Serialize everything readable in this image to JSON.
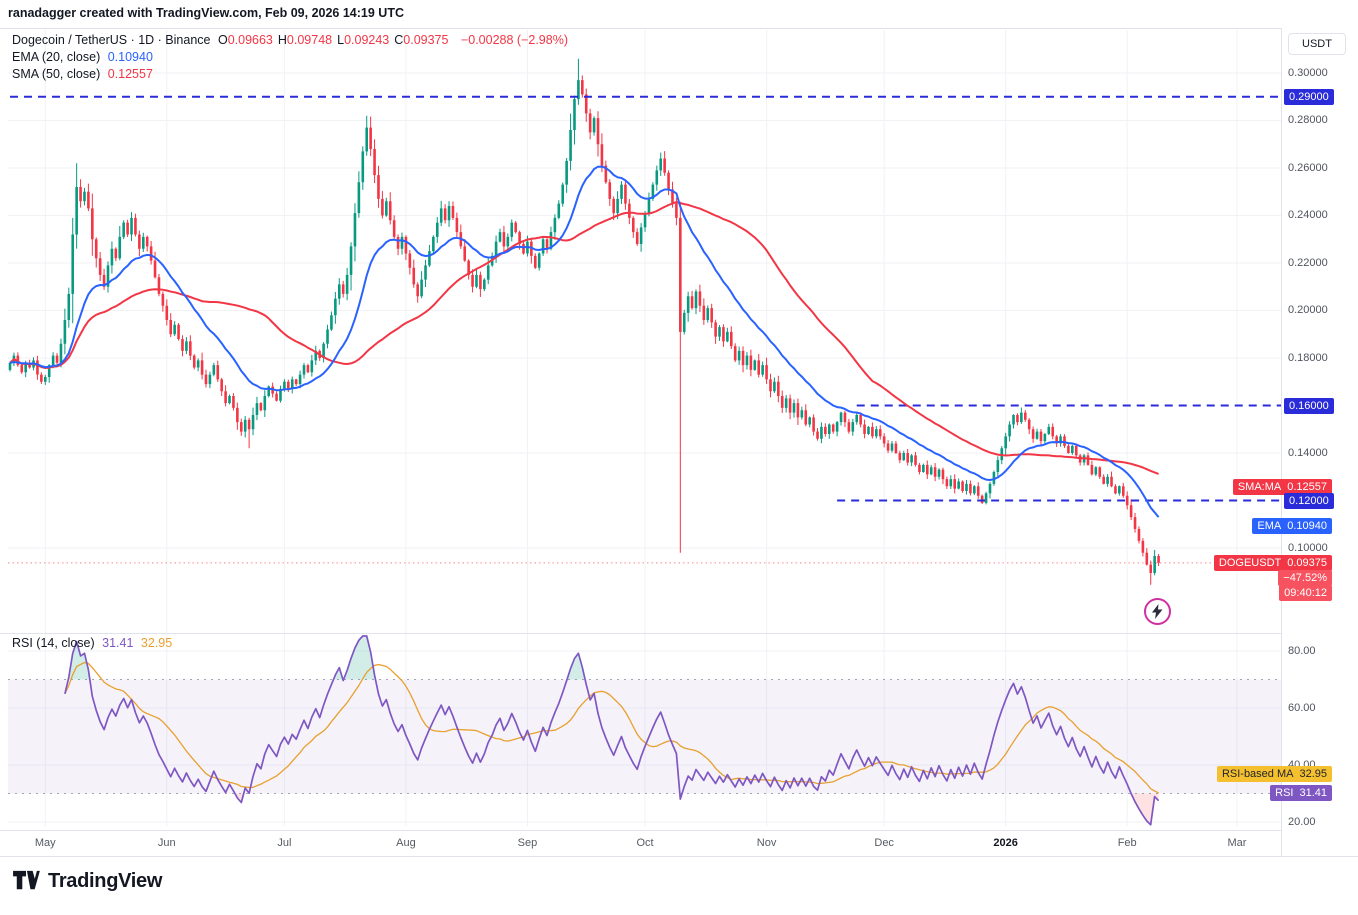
{
  "header": {
    "attribution": "ranadagger created with TradingView.com, Feb 09, 2026 14:19 UTC"
  },
  "legend": {
    "title": "Dogecoin / TetherUS · 1D · Binance",
    "ohlc": [
      {
        "k": "O",
        "v": "0.09663"
      },
      {
        "k": "H",
        "v": "0.09748"
      },
      {
        "k": "L",
        "v": "0.09243"
      },
      {
        "k": "C",
        "v": "0.09375"
      }
    ],
    "change": "−0.00288 (−2.98%)",
    "ema_label": "EMA (20, close)",
    "ema_value": "0.10940",
    "sma_label": "SMA (50, close)",
    "sma_value": "0.12557",
    "rsi_label": "RSI (14, close)",
    "rsi_value": "31.41",
    "rsi_ma_value": "32.95"
  },
  "labels": {
    "axis_unit": "USDT",
    "sma_tag": "SMA:MA",
    "sma_value": "0.12557",
    "ema_tag": "EMA",
    "ema_value": "0.10940",
    "symbol_tag": "DOGEUSDT",
    "last_price": "0.09375",
    "change_pct": "−47.52%",
    "countdown": "09:40:12",
    "rsi_ma_tag": "RSI-based MA",
    "rsi_ma_value": "32.95",
    "rsi_tag": "RSI",
    "rsi_value": "31.41"
  },
  "branding": {
    "logo_text": "TradingView"
  },
  "colors": {
    "up": "#089981",
    "down": "#F23645",
    "ema": "#2962FF",
    "sma": "#F23645",
    "level_blue": "#2A2BD9",
    "rsi": "#7E57C2",
    "rsi_ma": "#E8A02E",
    "pill_red": "#F23645",
    "pill_red_light": "#F7525F",
    "pill_yellow": "#F5C02F",
    "grid": "#f0f2f6"
  },
  "chart_data": {
    "type": "candlestick",
    "symbol": "DOGEUSDT",
    "exchange": "Binance",
    "interval": "1D",
    "title": "Dogecoin / TetherUS · 1D · Binance",
    "price_panel": {
      "ylim": [
        0.065,
        0.318
      ],
      "grid": true,
      "ticks": [
        {
          "v": 0.3,
          "label": "0.30000"
        },
        {
          "v": 0.28,
          "label": "0.28000"
        },
        {
          "v": 0.26,
          "label": "0.26000"
        },
        {
          "v": 0.24,
          "label": "0.24000"
        },
        {
          "v": 0.22,
          "label": "0.22000"
        },
        {
          "v": 0.2,
          "label": "0.20000"
        },
        {
          "v": 0.18,
          "label": "0.18000"
        },
        {
          "v": 0.14,
          "label": "0.14000"
        },
        {
          "v": 0.1,
          "label": "0.10000"
        }
      ],
      "level_lines": [
        {
          "price": 0.29,
          "label": "0.29000",
          "from_index": 0,
          "color": "#2A2BD9"
        },
        {
          "price": 0.16,
          "label": "0.16000",
          "from_index": 216,
          "color": "#2A2BD9"
        },
        {
          "price": 0.12,
          "label": "0.12000",
          "from_index": 211,
          "color": "#2A2BD9"
        }
      ],
      "last_price_line": {
        "price": 0.09375,
        "color": "#F23645"
      }
    },
    "candles": {
      "start_date": "2025-04-22",
      "first_open": 0.175,
      "closes": [
        0.178,
        0.181,
        0.177,
        0.174,
        0.178,
        0.176,
        0.179,
        0.173,
        0.17,
        0.172,
        0.177,
        0.181,
        0.178,
        0.186,
        0.196,
        0.207,
        0.232,
        0.252,
        0.246,
        0.25,
        0.243,
        0.23,
        0.222,
        0.215,
        0.21,
        0.219,
        0.226,
        0.222,
        0.231,
        0.237,
        0.232,
        0.239,
        0.232,
        0.226,
        0.231,
        0.227,
        0.221,
        0.214,
        0.207,
        0.202,
        0.196,
        0.19,
        0.194,
        0.188,
        0.183,
        0.187,
        0.181,
        0.176,
        0.179,
        0.173,
        0.169,
        0.173,
        0.177,
        0.171,
        0.166,
        0.161,
        0.164,
        0.159,
        0.153,
        0.149,
        0.154,
        0.15,
        0.156,
        0.161,
        0.158,
        0.164,
        0.168,
        0.165,
        0.162,
        0.167,
        0.17,
        0.167,
        0.171,
        0.169,
        0.173,
        0.177,
        0.174,
        0.179,
        0.183,
        0.18,
        0.186,
        0.192,
        0.198,
        0.205,
        0.211,
        0.207,
        0.215,
        0.227,
        0.241,
        0.254,
        0.267,
        0.277,
        0.268,
        0.257,
        0.247,
        0.24,
        0.246,
        0.238,
        0.231,
        0.226,
        0.231,
        0.224,
        0.218,
        0.211,
        0.206,
        0.213,
        0.219,
        0.225,
        0.231,
        0.237,
        0.243,
        0.238,
        0.244,
        0.239,
        0.233,
        0.227,
        0.221,
        0.215,
        0.21,
        0.215,
        0.209,
        0.213,
        0.219,
        0.223,
        0.229,
        0.233,
        0.227,
        0.231,
        0.237,
        0.233,
        0.228,
        0.224,
        0.229,
        0.223,
        0.218,
        0.224,
        0.23,
        0.226,
        0.233,
        0.239,
        0.245,
        0.253,
        0.263,
        0.276,
        0.289,
        0.297,
        0.291,
        0.283,
        0.275,
        0.281,
        0.27,
        0.261,
        0.254,
        0.247,
        0.241,
        0.247,
        0.253,
        0.245,
        0.239,
        0.233,
        0.228,
        0.235,
        0.241,
        0.247,
        0.253,
        0.259,
        0.264,
        0.258,
        0.251,
        0.245,
        0.239,
        0.191,
        0.199,
        0.206,
        0.201,
        0.208,
        0.202,
        0.196,
        0.201,
        0.195,
        0.189,
        0.193,
        0.187,
        0.191,
        0.185,
        0.179,
        0.183,
        0.177,
        0.181,
        0.175,
        0.179,
        0.173,
        0.177,
        0.171,
        0.166,
        0.17,
        0.164,
        0.159,
        0.163,
        0.157,
        0.161,
        0.155,
        0.158,
        0.152,
        0.155,
        0.149,
        0.146,
        0.151,
        0.148,
        0.152,
        0.149,
        0.153,
        0.157,
        0.153,
        0.149,
        0.153,
        0.156,
        0.152,
        0.148,
        0.151,
        0.147,
        0.15,
        0.147,
        0.144,
        0.141,
        0.144,
        0.14,
        0.137,
        0.14,
        0.136,
        0.139,
        0.135,
        0.132,
        0.135,
        0.131,
        0.134,
        0.13,
        0.133,
        0.129,
        0.126,
        0.129,
        0.125,
        0.128,
        0.124,
        0.127,
        0.123,
        0.126,
        0.122,
        0.119,
        0.123,
        0.127,
        0.132,
        0.137,
        0.142,
        0.147,
        0.152,
        0.156,
        0.153,
        0.157,
        0.154,
        0.15,
        0.146,
        0.149,
        0.145,
        0.148,
        0.151,
        0.147,
        0.144,
        0.147,
        0.143,
        0.14,
        0.143,
        0.139,
        0.136,
        0.139,
        0.135,
        0.131,
        0.134,
        0.13,
        0.127,
        0.13,
        0.126,
        0.123,
        0.126,
        0.122,
        0.118,
        0.113,
        0.108,
        0.103,
        0.098,
        0.093,
        0.0895,
        0.09663,
        0.09375
      ],
      "wick_overrides": {
        "17": {
          "h": 0.262
        },
        "61": {
          "l": 0.142
        },
        "91": {
          "h": 0.282
        },
        "145": {
          "h": 0.306
        },
        "171": {
          "l": 0.098
        },
        "291": {
          "l": 0.0845
        }
      },
      "last_ohlc": {
        "o": 0.09663,
        "h": 0.09748,
        "l": 0.09243,
        "c": 0.09375
      }
    },
    "overlays": [
      {
        "name": "EMA 20",
        "type": "ema",
        "period": 20,
        "color": "#2962FF",
        "last": 0.1094
      },
      {
        "name": "SMA 50",
        "type": "sma",
        "period": 50,
        "color": "#F23645",
        "last": 0.12557
      }
    ],
    "rsi_panel": {
      "name": "RSI (14, close)",
      "period": 14,
      "ma_period": 14,
      "ylim": [
        14,
        88
      ],
      "band": [
        30,
        70
      ],
      "ticks": [
        {
          "v": 80,
          "label": "80.00"
        },
        {
          "v": 60,
          "label": "60.00"
        },
        {
          "v": 40,
          "label": "40.00"
        },
        {
          "v": 20,
          "label": "20.00"
        }
      ],
      "rsi_color": "#7E57C2",
      "ma_color": "#E8A02E",
      "last_rsi": 31.41,
      "last_ma": 32.95
    },
    "x_axis": {
      "months": [
        {
          "label": "May",
          "index": 9
        },
        {
          "label": "Jun",
          "index": 40
        },
        {
          "label": "Jul",
          "index": 70
        },
        {
          "label": "Aug",
          "index": 101
        },
        {
          "label": "Sep",
          "index": 132
        },
        {
          "label": "Oct",
          "index": 162
        },
        {
          "label": "Nov",
          "index": 193
        },
        {
          "label": "Dec",
          "index": 223
        },
        {
          "label": "2026",
          "index": 254,
          "bold": true
        },
        {
          "label": "Feb",
          "index": 285
        },
        {
          "label": "Mar",
          "index": 313
        }
      ]
    }
  }
}
